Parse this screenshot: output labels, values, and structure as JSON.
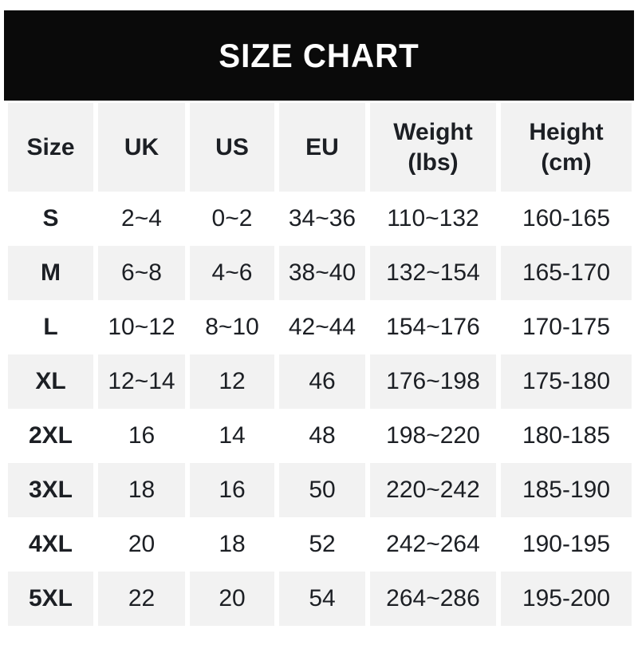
{
  "title": "SIZE CHART",
  "colors": {
    "banner_bg": "#0a0a0a",
    "banner_text": "#ffffff",
    "stripe_bg": "#f2f2f2",
    "text": "#1c1f24"
  },
  "headers": [
    {
      "label": "Size",
      "sub": ""
    },
    {
      "label": "UK",
      "sub": ""
    },
    {
      "label": "US",
      "sub": ""
    },
    {
      "label": "EU",
      "sub": ""
    },
    {
      "label": "Weight",
      "sub": "(lbs)"
    },
    {
      "label": "Height",
      "sub": "(cm)"
    }
  ],
  "chart_data": {
    "type": "table",
    "title": "SIZE CHART",
    "columns": [
      "Size",
      "UK",
      "US",
      "EU",
      "Weight (lbs)",
      "Height (cm)"
    ],
    "rows": [
      [
        "S",
        "2~4",
        "0~2",
        "34~36",
        "110~132",
        "160-165"
      ],
      [
        "M",
        "6~8",
        "4~6",
        "38~40",
        "132~154",
        "165-170"
      ],
      [
        "L",
        "10~12",
        "8~10",
        "42~44",
        "154~176",
        "170-175"
      ],
      [
        "XL",
        "12~14",
        "12",
        "46",
        "176~198",
        "175-180"
      ],
      [
        "2XL",
        "16",
        "14",
        "48",
        "198~220",
        "180-185"
      ],
      [
        "3XL",
        "18",
        "16",
        "50",
        "220~242",
        "185-190"
      ],
      [
        "4XL",
        "20",
        "18",
        "52",
        "242~264",
        "190-195"
      ],
      [
        "5XL",
        "22",
        "20",
        "54",
        "264~286",
        "195-200"
      ]
    ]
  }
}
